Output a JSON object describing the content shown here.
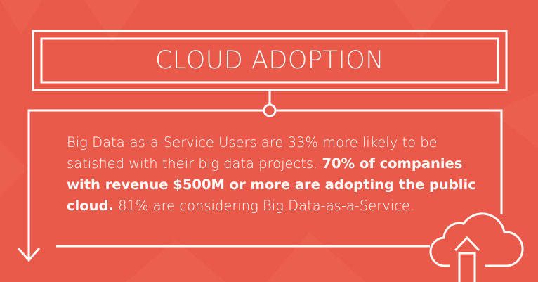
{
  "header": {
    "title": "CLOUD ADOPTION"
  },
  "body": {
    "intro": "Big Data-as-a-Service Users are 33% more likely to be satisfied with their big data projects.",
    "highlight": "70% of companies with revenue $500M or more are adopting the public cloud.",
    "outro": "81% are considering Big Data-as-a-Service."
  }
}
